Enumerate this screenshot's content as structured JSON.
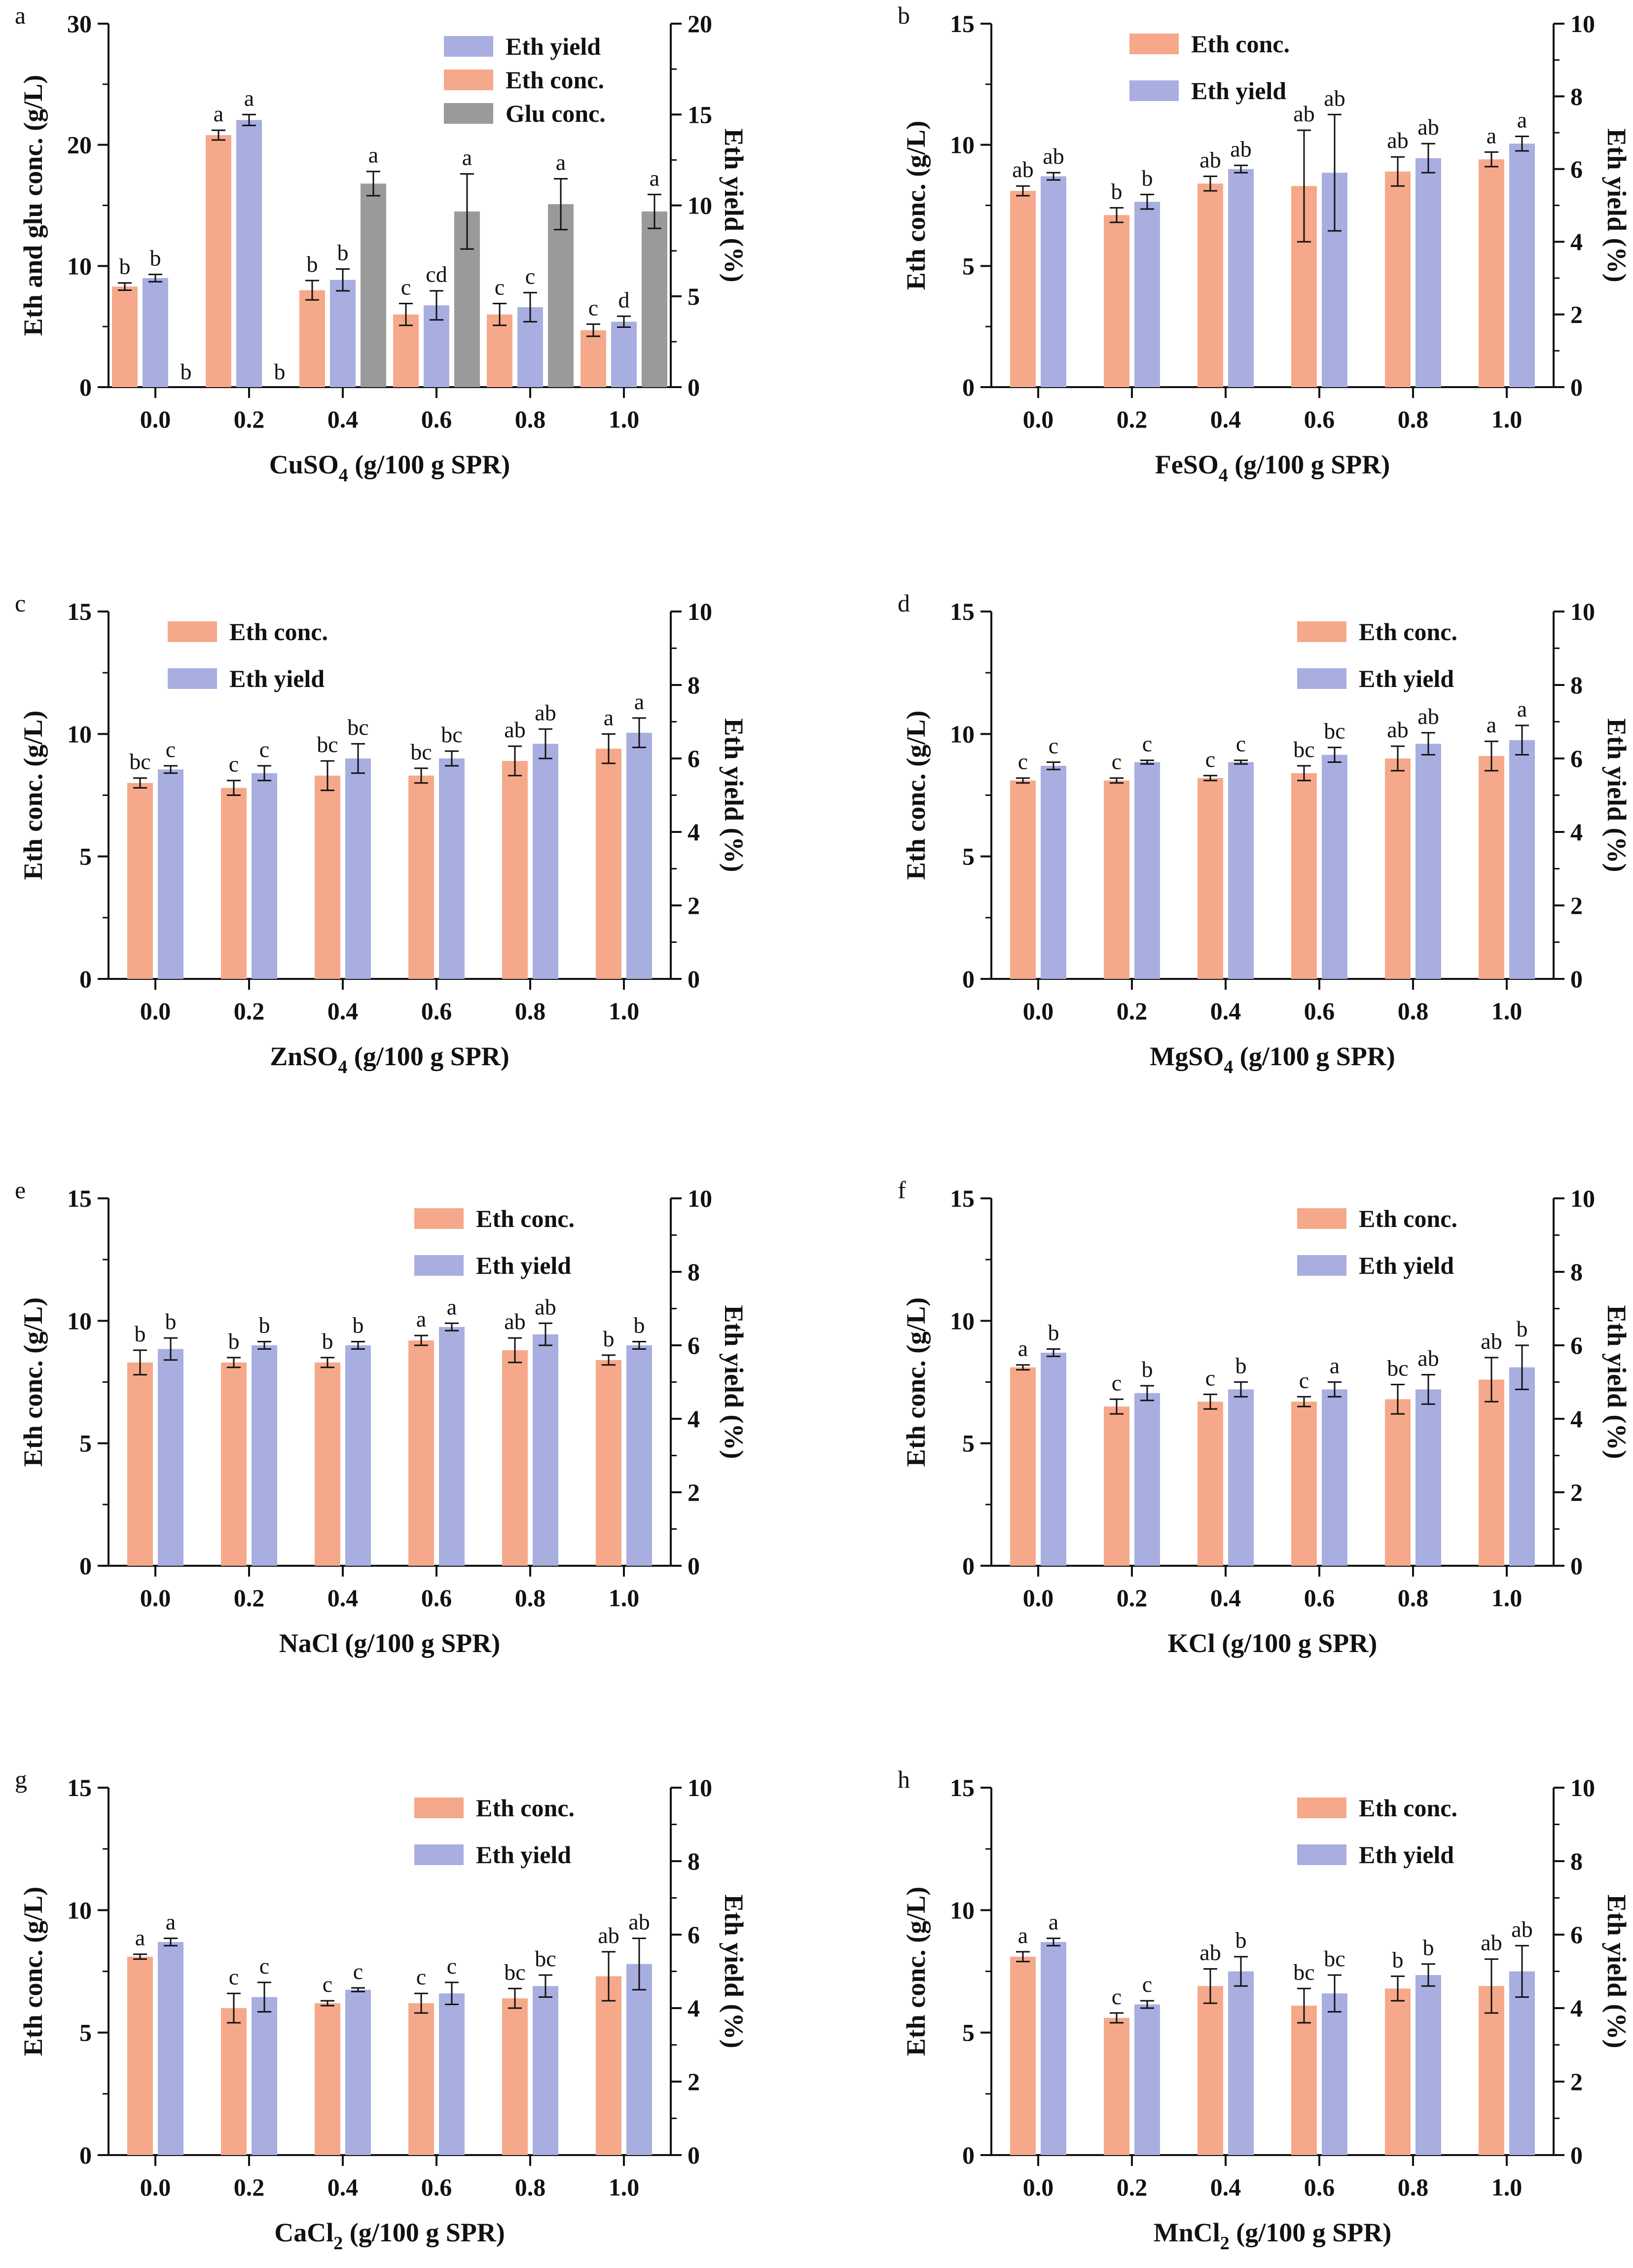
{
  "chart_data": [
    {
      "panel": "a",
      "type": "bar",
      "categories": [
        "0.0",
        "0.2",
        "0.4",
        "0.6",
        "0.8",
        "1.0"
      ],
      "xlabel": "CuSO4 (g/100 g SPR)",
      "xlabel_main": "CuSO",
      "xlabel_sub": "4",
      "xlabel_rest": " (g/100 g SPR)",
      "ylabel_left": "Eth and glu conc. (g/L)",
      "ylim_left": [
        0,
        30
      ],
      "yticks_left": [
        "0",
        "10",
        "20",
        "30"
      ],
      "ylabel_right": "Eth yield (%)",
      "ylim_right": [
        0,
        20
      ],
      "yticks_right": [
        "0",
        "5",
        "10",
        "15",
        "20"
      ],
      "series": [
        {
          "name": "Eth conc.",
          "axis": "left",
          "color": "#F5A98A",
          "values": [
            8.3,
            20.8,
            8.0,
            6.0,
            6.0,
            4.7
          ],
          "errors": [
            0.3,
            0.4,
            0.8,
            0.9,
            0.9,
            0.5
          ],
          "labels": [
            "b",
            "a",
            "b",
            "c",
            "c",
            "c"
          ]
        },
        {
          "name": "Eth yield",
          "axis": "right",
          "color": "#A8AEE0",
          "values": [
            6.0,
            14.7,
            5.9,
            4.5,
            4.4,
            3.6
          ],
          "errors": [
            0.2,
            0.3,
            0.6,
            0.8,
            0.8,
            0.3
          ],
          "labels": [
            "b",
            "a",
            "b",
            "cd",
            "c",
            "d"
          ]
        },
        {
          "name": "Glu conc.",
          "axis": "left",
          "color": "#9A9A9A",
          "values": [
            0.0,
            0.0,
            16.8,
            14.5,
            15.1,
            14.5
          ],
          "errors": [
            0.0,
            0.0,
            1.0,
            3.1,
            2.1,
            1.4
          ],
          "labels": [
            "b",
            "b",
            "a",
            "a",
            "a",
            "a"
          ]
        }
      ],
      "legend": [
        "Eth yield",
        "Eth conc.",
        "Glu conc."
      ],
      "legend_position": "top-right"
    },
    {
      "panel": "b",
      "type": "bar",
      "categories": [
        "0.0",
        "0.2",
        "0.4",
        "0.6",
        "0.8",
        "1.0"
      ],
      "xlabel": "FeSO4 (g/100 g SPR)",
      "xlabel_main": "FeSO",
      "xlabel_sub": "4",
      "xlabel_rest": " (g/100 g SPR)",
      "ylabel_left": "Eth conc. (g/L)",
      "ylim_left": [
        0,
        15
      ],
      "yticks_left": [
        "0",
        "5",
        "10",
        "15"
      ],
      "ylabel_right": "Eth yield (%)",
      "ylim_right": [
        0,
        10
      ],
      "yticks_right": [
        "0",
        "2",
        "4",
        "6",
        "8",
        "10"
      ],
      "series": [
        {
          "name": "Eth conc.",
          "axis": "left",
          "color": "#F5A98A",
          "values": [
            8.1,
            7.1,
            8.4,
            8.3,
            8.9,
            9.4
          ],
          "errors": [
            0.2,
            0.3,
            0.3,
            2.3,
            0.6,
            0.3
          ],
          "labels": [
            "ab",
            "b",
            "ab",
            "ab",
            "ab",
            "a"
          ]
        },
        {
          "name": "Eth yield",
          "axis": "right",
          "color": "#A8AEE0",
          "values": [
            5.8,
            5.1,
            6.0,
            5.9,
            6.3,
            6.7
          ],
          "errors": [
            0.1,
            0.2,
            0.1,
            1.6,
            0.4,
            0.2
          ],
          "labels": [
            "ab",
            "b",
            "ab",
            "ab",
            "ab",
            "a"
          ]
        }
      ],
      "legend": [
        "Eth conc.",
        "Eth yield"
      ],
      "legend_position": "top-center"
    },
    {
      "panel": "c",
      "type": "bar",
      "categories": [
        "0.0",
        "0.2",
        "0.4",
        "0.6",
        "0.8",
        "1.0"
      ],
      "xlabel": "ZnSO4 (g/100 g SPR)",
      "xlabel_main": "ZnSO",
      "xlabel_sub": "4",
      "xlabel_rest": " (g/100 g SPR)",
      "ylabel_left": "Eth conc. (g/L)",
      "ylim_left": [
        0,
        15
      ],
      "yticks_left": [
        "0",
        "5",
        "10",
        "15"
      ],
      "ylabel_right": "Eth yield (%)",
      "ylim_right": [
        0,
        10
      ],
      "yticks_right": [
        "0",
        "2",
        "4",
        "6",
        "8",
        "10"
      ],
      "series": [
        {
          "name": "Eth conc.",
          "axis": "left",
          "color": "#F5A98A",
          "values": [
            8.0,
            7.8,
            8.3,
            8.3,
            8.9,
            9.4
          ],
          "errors": [
            0.2,
            0.3,
            0.6,
            0.3,
            0.6,
            0.6
          ],
          "labels": [
            "bc",
            "c",
            "bc",
            "bc",
            "ab",
            "a"
          ]
        },
        {
          "name": "Eth yield",
          "axis": "right",
          "color": "#A8AEE0",
          "values": [
            5.7,
            5.6,
            6.0,
            6.0,
            6.4,
            6.7
          ],
          "errors": [
            0.1,
            0.2,
            0.4,
            0.2,
            0.4,
            0.4
          ],
          "labels": [
            "c",
            "c",
            "bc",
            "bc",
            "ab",
            "a"
          ]
        }
      ],
      "legend": [
        "Eth conc.",
        "Eth yield"
      ],
      "legend_position": "top-left"
    },
    {
      "panel": "d",
      "type": "bar",
      "categories": [
        "0.0",
        "0.2",
        "0.4",
        "0.6",
        "0.8",
        "1.0"
      ],
      "xlabel": "MgSO4 (g/100 g SPR)",
      "xlabel_main": "MgSO",
      "xlabel_sub": "4",
      "xlabel_rest": " (g/100 g SPR)",
      "ylabel_left": "Eth conc. (g/L)",
      "ylim_left": [
        0,
        15
      ],
      "yticks_left": [
        "0",
        "5",
        "10",
        "15"
      ],
      "ylabel_right": "Eth yield (%)",
      "ylim_right": [
        0,
        10
      ],
      "yticks_right": [
        "0",
        "2",
        "4",
        "6",
        "8",
        "10"
      ],
      "series": [
        {
          "name": "Eth conc.",
          "axis": "left",
          "color": "#F5A98A",
          "values": [
            8.1,
            8.1,
            8.2,
            8.4,
            9.0,
            9.1
          ],
          "errors": [
            0.1,
            0.1,
            0.1,
            0.3,
            0.5,
            0.6
          ],
          "labels": [
            "c",
            "c",
            "c",
            "bc",
            "ab",
            "a"
          ]
        },
        {
          "name": "Eth yield",
          "axis": "right",
          "color": "#A8AEE0",
          "values": [
            5.8,
            5.9,
            5.9,
            6.1,
            6.4,
            6.5
          ],
          "errors": [
            0.1,
            0.05,
            0.05,
            0.2,
            0.3,
            0.4
          ],
          "labels": [
            "c",
            "c",
            "c",
            "bc",
            "ab",
            "a"
          ]
        }
      ],
      "legend": [
        "Eth conc.",
        "Eth yield"
      ],
      "legend_position": "top-right"
    },
    {
      "panel": "e",
      "type": "bar",
      "categories": [
        "0.0",
        "0.2",
        "0.4",
        "0.6",
        "0.8",
        "1.0"
      ],
      "xlabel": "NaCl (g/100 g SPR)",
      "xlabel_main": "NaCl",
      "xlabel_sub": "",
      "xlabel_rest": " (g/100 g SPR)",
      "ylabel_left": "Eth conc. (g/L)",
      "ylim_left": [
        0,
        15
      ],
      "yticks_left": [
        "0",
        "5",
        "10",
        "15"
      ],
      "ylabel_right": "Eth yield (%)",
      "ylim_right": [
        0,
        10
      ],
      "yticks_right": [
        "0",
        "2",
        "4",
        "6",
        "8",
        "10"
      ],
      "series": [
        {
          "name": "Eth conc.",
          "axis": "left",
          "color": "#F5A98A",
          "values": [
            8.3,
            8.3,
            8.3,
            9.2,
            8.8,
            8.4
          ],
          "errors": [
            0.5,
            0.2,
            0.2,
            0.2,
            0.5,
            0.2
          ],
          "labels": [
            "b",
            "b",
            "b",
            "a",
            "ab",
            "b"
          ]
        },
        {
          "name": "Eth yield",
          "axis": "right",
          "color": "#A8AEE0",
          "values": [
            5.9,
            6.0,
            6.0,
            6.5,
            6.3,
            6.0
          ],
          "errors": [
            0.3,
            0.1,
            0.1,
            0.1,
            0.3,
            0.1
          ],
          "labels": [
            "b",
            "b",
            "b",
            "a",
            "ab",
            "b"
          ]
        }
      ],
      "legend": [
        "Eth conc.",
        "Eth yield"
      ],
      "legend_position": "top-right"
    },
    {
      "panel": "f",
      "type": "bar",
      "categories": [
        "0.0",
        "0.2",
        "0.4",
        "0.6",
        "0.8",
        "1.0"
      ],
      "xlabel": "KCl (g/100 g SPR)",
      "xlabel_main": "KCl",
      "xlabel_sub": "",
      "xlabel_rest": " (g/100 g SPR)",
      "ylabel_left": "Eth conc. (g/L)",
      "ylim_left": [
        0,
        15
      ],
      "yticks_left": [
        "0",
        "5",
        "10",
        "15"
      ],
      "ylabel_right": "Eth yield (%)",
      "ylim_right": [
        0,
        10
      ],
      "yticks_right": [
        "0",
        "2",
        "4",
        "6",
        "8",
        "10"
      ],
      "series": [
        {
          "name": "Eth conc.",
          "axis": "left",
          "color": "#F5A98A",
          "values": [
            8.1,
            6.5,
            6.7,
            6.7,
            6.8,
            7.6
          ],
          "errors": [
            0.1,
            0.3,
            0.3,
            0.2,
            0.6,
            0.9
          ],
          "labels": [
            "a",
            "c",
            "c",
            "c",
            "bc",
            "ab"
          ]
        },
        {
          "name": "Eth yield",
          "axis": "right",
          "color": "#A8AEE0",
          "values": [
            5.8,
            4.7,
            4.8,
            4.8,
            4.8,
            5.4
          ],
          "errors": [
            0.1,
            0.2,
            0.2,
            0.2,
            0.4,
            0.6
          ],
          "labels": [
            "b",
            "b",
            "b",
            "a",
            "ab",
            "b"
          ]
        }
      ],
      "legend": [
        "Eth conc.",
        "Eth yield"
      ],
      "legend_position": "top-right"
    },
    {
      "panel": "g",
      "type": "bar",
      "categories": [
        "0.0",
        "0.2",
        "0.4",
        "0.6",
        "0.8",
        "1.0"
      ],
      "xlabel": "CaCl2 (g/100 g SPR)",
      "xlabel_main": "CaCl",
      "xlabel_sub": "2",
      "xlabel_rest": " (g/100 g SPR)",
      "ylabel_left": "Eth conc. (g/L)",
      "ylim_left": [
        0,
        15
      ],
      "yticks_left": [
        "0",
        "5",
        "10",
        "15"
      ],
      "ylabel_right": "Eth yield (%)",
      "ylim_right": [
        0,
        10
      ],
      "yticks_right": [
        "0",
        "2",
        "4",
        "6",
        "8",
        "10"
      ],
      "series": [
        {
          "name": "Eth conc.",
          "axis": "left",
          "color": "#F5A98A",
          "values": [
            8.1,
            6.0,
            6.2,
            6.2,
            6.4,
            7.3
          ],
          "errors": [
            0.1,
            0.6,
            0.1,
            0.4,
            0.4,
            1.0
          ],
          "labels": [
            "a",
            "c",
            "c",
            "c",
            "bc",
            "ab"
          ]
        },
        {
          "name": "Eth yield",
          "axis": "right",
          "color": "#A8AEE0",
          "values": [
            5.8,
            4.3,
            4.5,
            4.4,
            4.6,
            5.2
          ],
          "errors": [
            0.1,
            0.4,
            0.05,
            0.3,
            0.3,
            0.7
          ],
          "labels": [
            "a",
            "c",
            "c",
            "c",
            "bc",
            "ab"
          ]
        }
      ],
      "legend": [
        "Eth conc.",
        "Eth yield"
      ],
      "legend_position": "top-right"
    },
    {
      "panel": "h",
      "type": "bar",
      "categories": [
        "0.0",
        "0.2",
        "0.4",
        "0.6",
        "0.8",
        "1.0"
      ],
      "xlabel": "MnCl2 (g/100 g SPR)",
      "xlabel_main": "MnCl",
      "xlabel_sub": "2",
      "xlabel_rest": " (g/100 g SPR)",
      "ylabel_left": "Eth conc. (g/L)",
      "ylim_left": [
        0,
        15
      ],
      "yticks_left": [
        "0",
        "5",
        "10",
        "15"
      ],
      "ylabel_right": "Eth yield (%)",
      "ylim_right": [
        0,
        10
      ],
      "yticks_right": [
        "0",
        "2",
        "4",
        "6",
        "8",
        "10"
      ],
      "series": [
        {
          "name": "Eth conc.",
          "axis": "left",
          "color": "#F5A98A",
          "values": [
            8.1,
            5.6,
            6.9,
            6.1,
            6.8,
            6.9
          ],
          "errors": [
            0.2,
            0.2,
            0.7,
            0.7,
            0.5,
            1.1
          ],
          "labels": [
            "a",
            "c",
            "ab",
            "bc",
            "b",
            "ab"
          ]
        },
        {
          "name": "Eth yield",
          "axis": "right",
          "color": "#A8AEE0",
          "values": [
            5.8,
            4.1,
            5.0,
            4.4,
            4.9,
            5.0
          ],
          "errors": [
            0.1,
            0.1,
            0.4,
            0.5,
            0.3,
            0.7
          ],
          "labels": [
            "a",
            "c",
            "b",
            "bc",
            "b",
            "ab"
          ]
        }
      ],
      "legend": [
        "Eth conc.",
        "Eth yield"
      ],
      "legend_position": "top-right"
    }
  ]
}
